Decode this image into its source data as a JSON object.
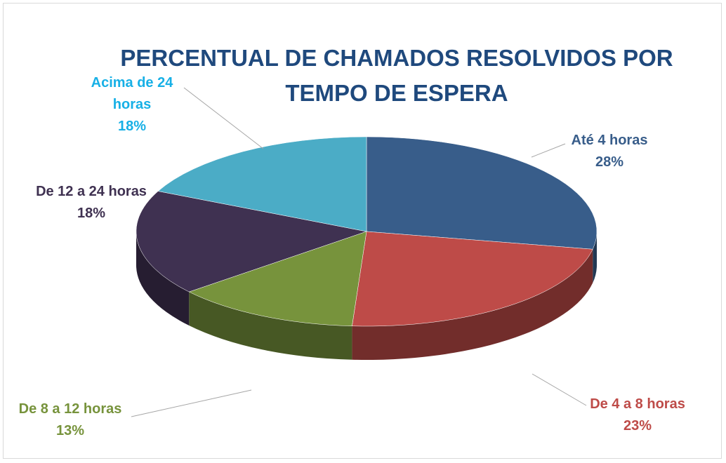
{
  "chart_data": {
    "type": "pie3d",
    "title": "PERCENTUAL DE CHAMADOS RESOLVIDOS POR TEMPO DE ESPERA",
    "categories": [
      "Até 4 horas",
      "De 4 a 8 horas",
      "De 8 a 12 horas",
      "De 12 a 24 horas",
      "Acima de 24 horas"
    ],
    "values": [
      28,
      23,
      13,
      18,
      18
    ],
    "value_labels": [
      "28%",
      "23%",
      "13%",
      "18%",
      "18%"
    ],
    "colors": [
      "#385d8a",
      "#be4b48",
      "#77933c",
      "#3f3151",
      "#4bacc6"
    ],
    "label_colors": [
      "#385d8a",
      "#be4b48",
      "#77933c",
      "#3f3151",
      "#17b0e6"
    ],
    "title_color": "#1f497d"
  }
}
